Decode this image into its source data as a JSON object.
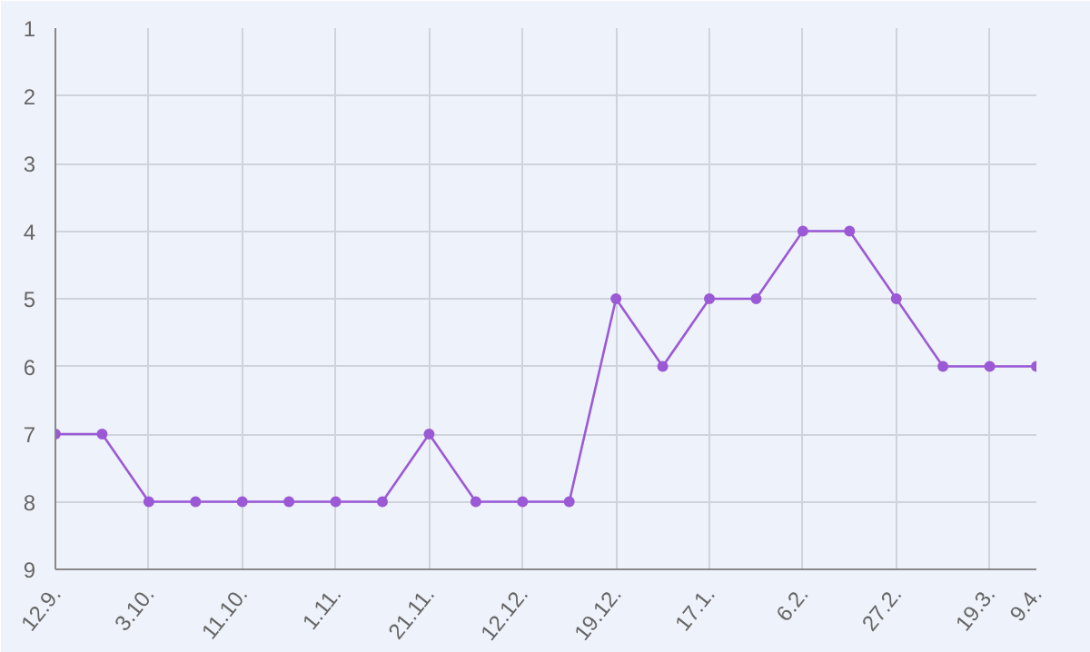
{
  "chart_data": {
    "type": "line",
    "categories": [
      "12.9.",
      null,
      "3.10.",
      null,
      "11.10.",
      null,
      "1.11.",
      null,
      "21.11.",
      null,
      "12.12.",
      null,
      "19.12.",
      null,
      "17.1.",
      null,
      "6.2.",
      null,
      "27.2.",
      null,
      "19.3.",
      "9.4."
    ],
    "series": [
      {
        "color": "#9b59d6",
        "values": [
          7,
          7,
          8,
          8,
          8,
          8,
          8,
          8,
          7,
          8,
          8,
          8,
          5,
          6,
          5,
          5,
          4,
          4,
          5,
          6,
          6,
          6
        ]
      }
    ],
    "ylim": [
      9,
      1
    ],
    "yticks": [
      1,
      2,
      3,
      4,
      5,
      6,
      7,
      8,
      9
    ],
    "grid": true,
    "marker": "circle",
    "line_style": "solid"
  }
}
